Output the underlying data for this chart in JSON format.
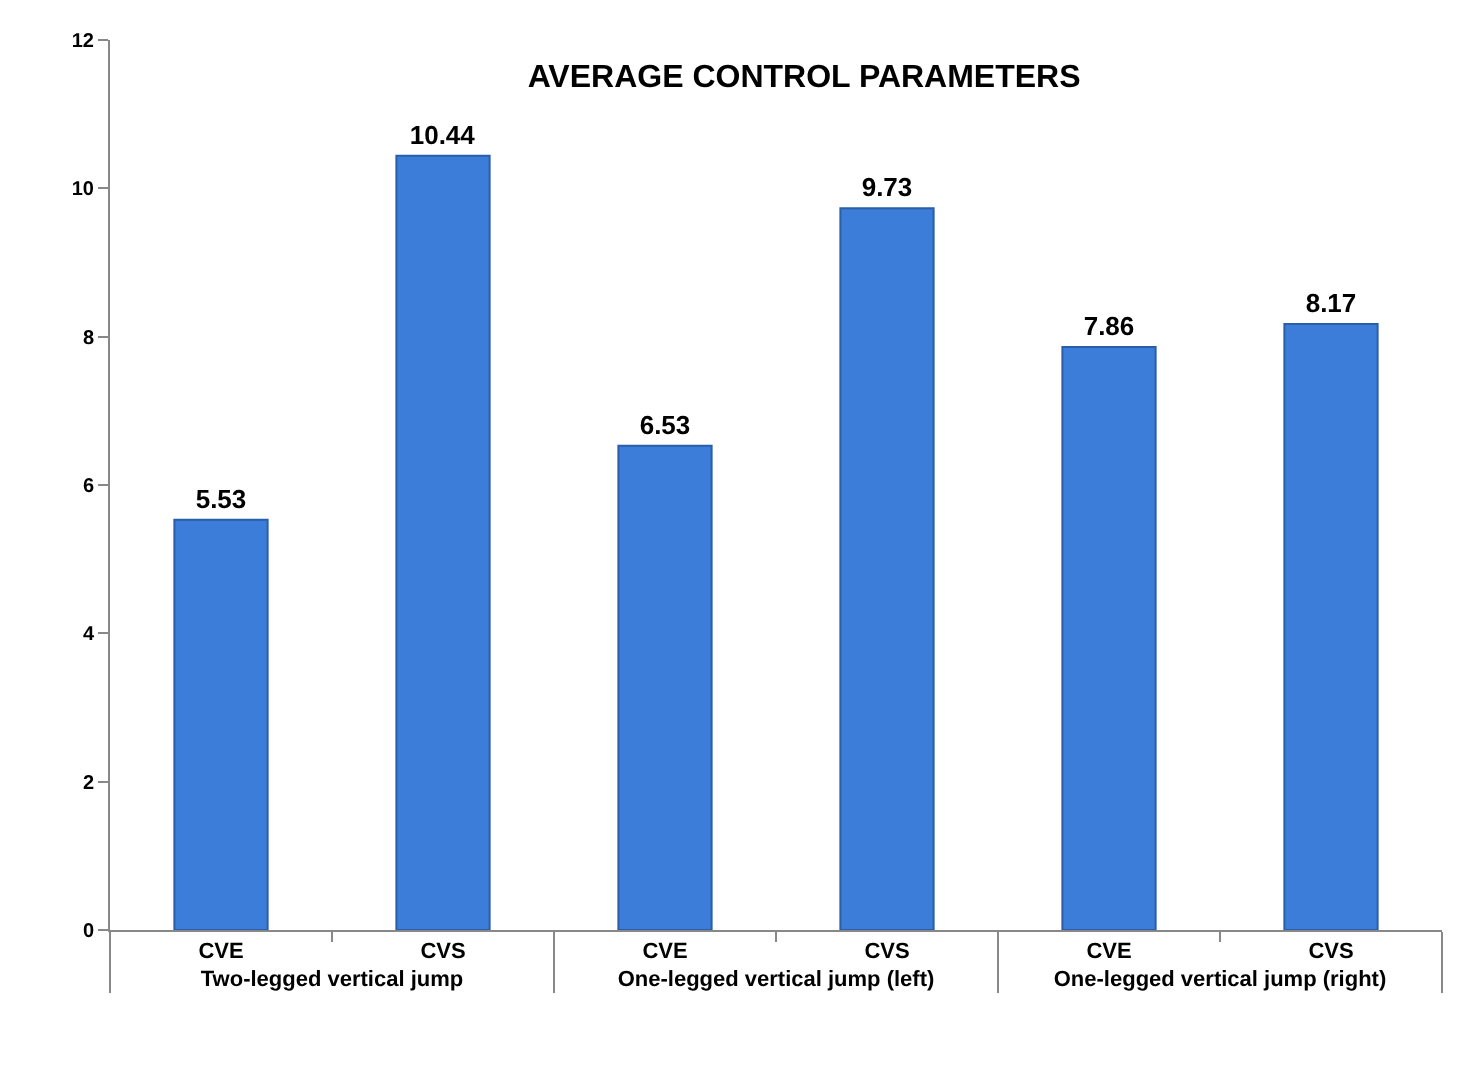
{
  "chart_data": {
    "type": "bar",
    "title": "AVERAGE CONTROL PARAMETERS",
    "categories": [
      "CVE",
      "CVS",
      "CVE",
      "CVS",
      "CVE",
      "CVS"
    ],
    "values": [
      5.53,
      10.44,
      6.53,
      9.73,
      7.86,
      8.17
    ],
    "color": "#3b7dd8",
    "annotations": [
      "Two-legged vertical jump",
      "One-legged vertical jump (left)",
      "One-legged vertical jump (right)"
    ],
    "ylim": [
      0,
      12
    ],
    "yticks": [
      0,
      2,
      4,
      6,
      8,
      10,
      12
    ],
    "data_labels": true
  }
}
